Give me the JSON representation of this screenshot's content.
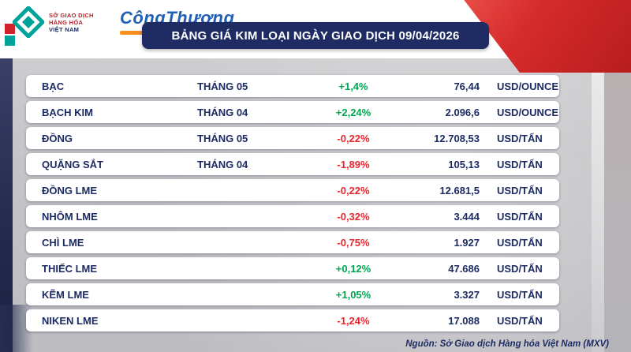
{
  "branding": {
    "mxv_lines": [
      "SỞ GIAO DỊCH",
      "HÀNG HÓA",
      "VIỆT NAM"
    ],
    "congthuong": "CôngThương"
  },
  "chart_data": {
    "type": "table",
    "title": "BẢNG GIÁ KIM LOẠI NGÀY GIAO DỊCH 09/04/2026",
    "rows": [
      {
        "name": "BẠC",
        "month": "THÁNG 05",
        "change": "+1,4%",
        "direction": "up",
        "price": "76,44",
        "unit": "USD/OUNCE"
      },
      {
        "name": "BẠCH KIM",
        "month": "THÁNG 04",
        "change": "+2,24%",
        "direction": "up",
        "price": "2.096,6",
        "unit": "USD/OUNCE"
      },
      {
        "name": "ĐỒNG",
        "month": "THÁNG 05",
        "change": "-0,22%",
        "direction": "down",
        "price": "12.708,53",
        "unit": "USD/TẤN"
      },
      {
        "name": "QUẶNG SẮT",
        "month": "THÁNG 04",
        "change": "-1,89%",
        "direction": "down",
        "price": "105,13",
        "unit": "USD/TẤN"
      },
      {
        "name": "ĐỒNG LME",
        "month": "",
        "change": "-0,22%",
        "direction": "down",
        "price": "12.681,5",
        "unit": "USD/TẤN"
      },
      {
        "name": "NHÔM LME",
        "month": "",
        "change": "-0,32%",
        "direction": "down",
        "price": "3.444",
        "unit": "USD/TẤN"
      },
      {
        "name": "CHÌ LME",
        "month": "",
        "change": "-0,75%",
        "direction": "down",
        "price": "1.927",
        "unit": "USD/TẤN"
      },
      {
        "name": "THIẾC LME",
        "month": "",
        "change": "+0,12%",
        "direction": "up",
        "price": "47.686",
        "unit": "USD/TẤN"
      },
      {
        "name": "KẼM LME",
        "month": "",
        "change": "+1,05%",
        "direction": "up",
        "price": "3.327",
        "unit": "USD/TẤN"
      },
      {
        "name": "NIKEN LME",
        "month": "",
        "change": "-1,24%",
        "direction": "down",
        "price": "17.088",
        "unit": "USD/TẤN"
      }
    ]
  },
  "footer": {
    "source": "Nguồn: Sở Giao dịch Hàng hóa Việt Nam (MXV)"
  },
  "colors": {
    "navy": "#1c2b63",
    "green": "#00a651",
    "red": "#e8262d",
    "accent_red": "#d2232a",
    "accent_teal": "#00a39a"
  }
}
